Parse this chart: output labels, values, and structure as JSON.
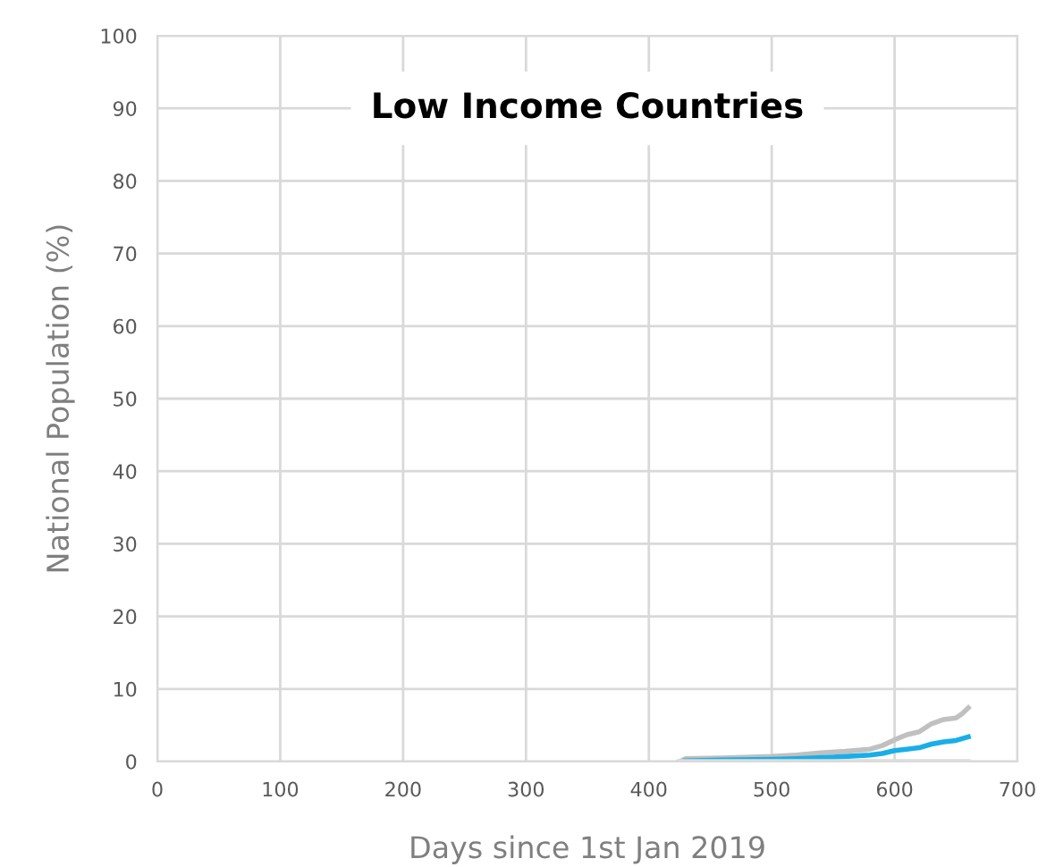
{
  "chart_data": {
    "type": "line",
    "title": "Low Income Countries",
    "xlabel": "Days since 1st Jan 2019",
    "ylabel": "National Population (%)",
    "xlim": [
      0,
      700
    ],
    "xticks": [
      0,
      100,
      200,
      300,
      400,
      500,
      600,
      700
    ],
    "ylim": [
      0,
      100
    ],
    "yticks": [
      0,
      10,
      20,
      30,
      40,
      50,
      60,
      70,
      80,
      90,
      100
    ],
    "grid": true,
    "marker": "none",
    "line_style": "solid",
    "series": [
      {
        "color": "#c0c0c0",
        "x": [
          425,
          430,
          460,
          500,
          520,
          540,
          560,
          580,
          590,
          600,
          610,
          620,
          630,
          640,
          650,
          655,
          660
        ],
        "values": [
          0,
          0.4,
          0.5,
          0.7,
          0.9,
          1.2,
          1.4,
          1.7,
          2.2,
          3.0,
          3.7,
          4.1,
          5.2,
          5.8,
          6.0,
          6.6,
          7.4
        ]
      },
      {
        "color": "#1aaee8",
        "x": [
          430,
          460,
          500,
          520,
          550,
          580,
          590,
          600,
          610,
          620,
          630,
          640,
          650,
          660
        ],
        "values": [
          0.1,
          0.2,
          0.3,
          0.4,
          0.6,
          0.9,
          1.1,
          1.5,
          1.7,
          1.9,
          2.4,
          2.7,
          2.9,
          3.4
        ]
      },
      {
        "color": "#dcdcdc",
        "x": [
          425,
          660
        ],
        "values": [
          0,
          0
        ]
      }
    ]
  }
}
